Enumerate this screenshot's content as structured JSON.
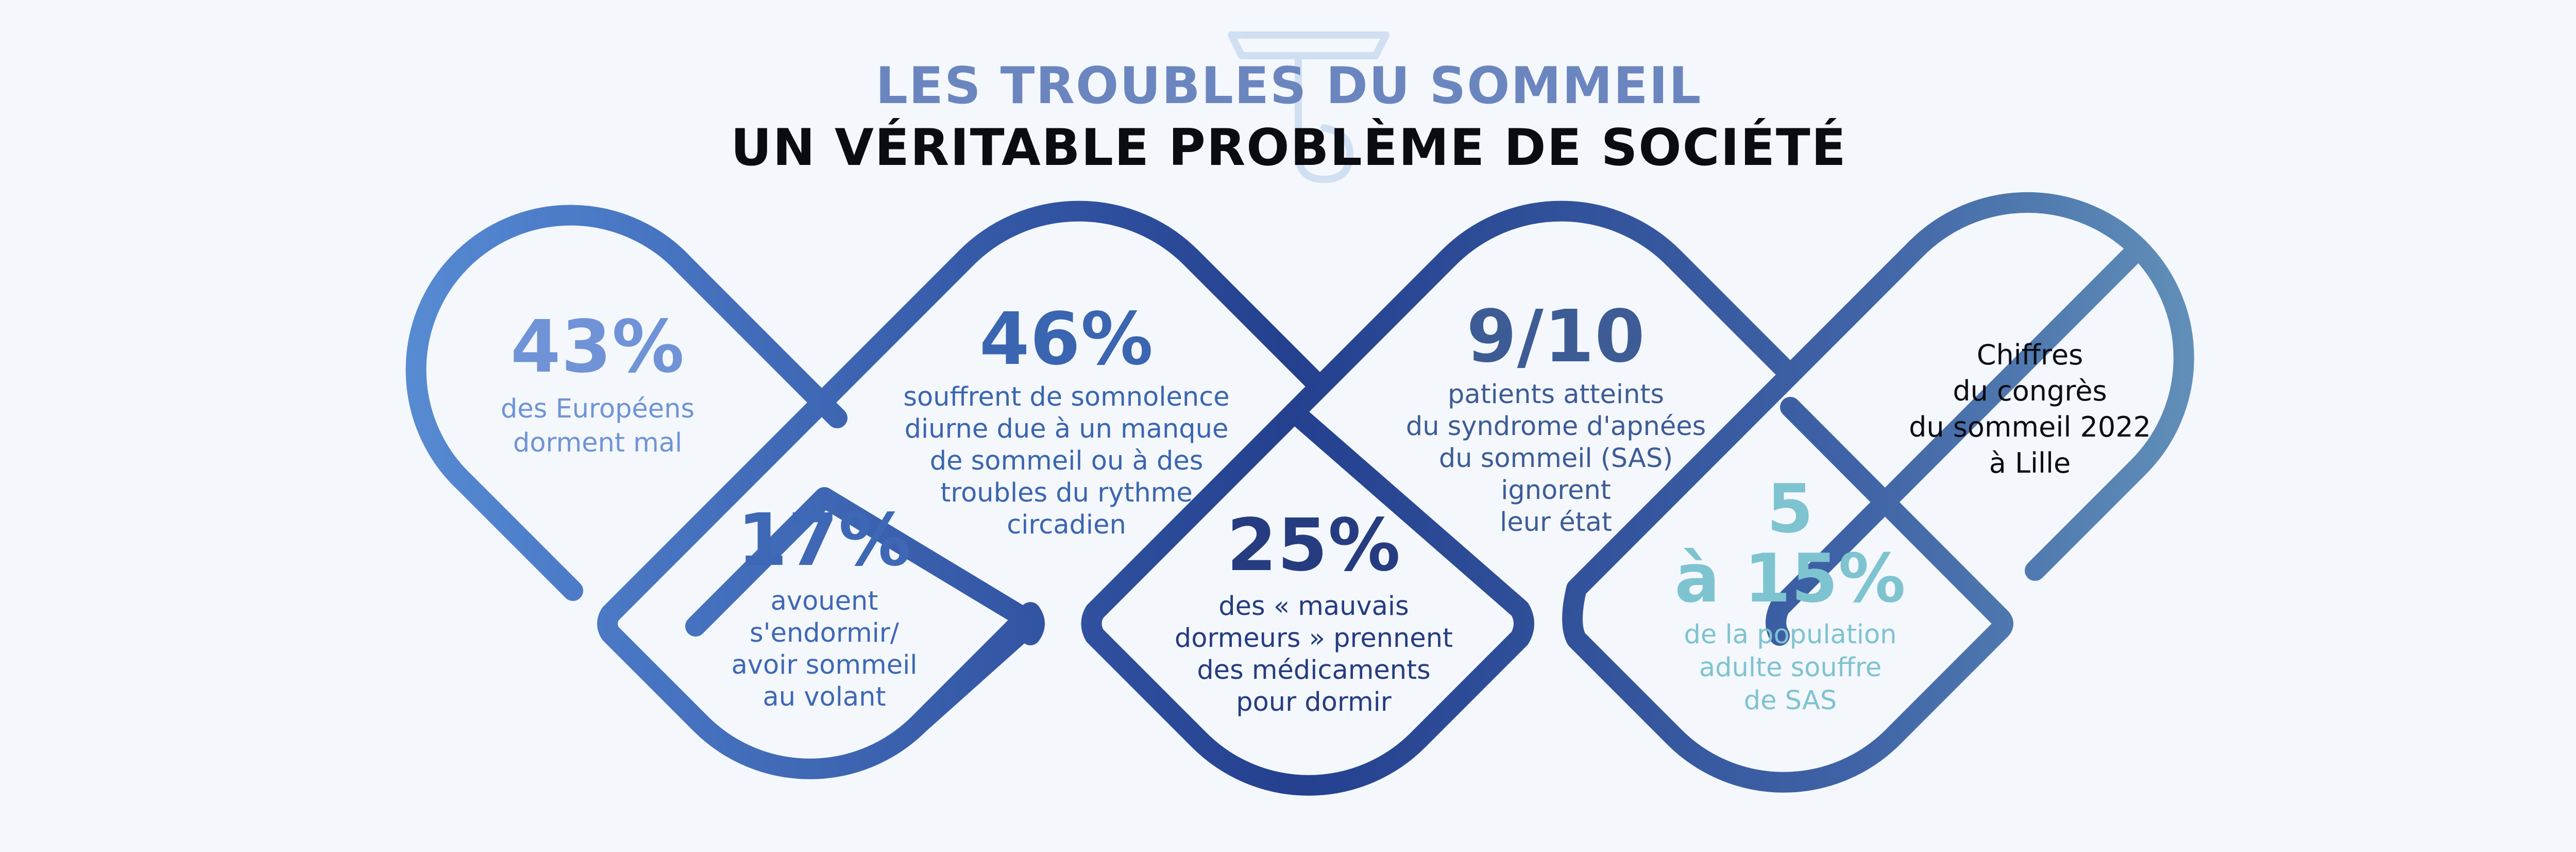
{
  "colors": {
    "background": "#f4f7fc",
    "title_accent": "#6b86bf",
    "title_main": "#0b0b12",
    "light_blue": "#6f93d6",
    "mid_blue": "#3e68b5",
    "deep_blue": "#2e4f98",
    "navy": "#253c80",
    "slate_blue": "#3d5c96",
    "teal": "#7ec3d0"
  },
  "header": {
    "line1": "LES TROUBLES DU SOMMEIL",
    "line2": "UN VÉRITABLE PROBLÈME DE SOCIÉTÉ"
  },
  "logo": {
    "icon": "letter-t-logo-icon"
  },
  "stats": [
    {
      "value": "43%",
      "text": [
        "des Européens",
        "dorment mal"
      ]
    },
    {
      "value": "17%",
      "text": [
        "avouent",
        "s'endormir/",
        "avoir sommeil",
        "au volant"
      ]
    },
    {
      "value": "46%",
      "text": [
        "souffrent de somnolence",
        "diurne due à un manque",
        "de sommeil ou à des",
        "troubles du rythme",
        "circadien"
      ]
    },
    {
      "value": "25%",
      "text": [
        "des « mauvais",
        "dormeurs » prennent",
        "des médicaments",
        "pour dormir"
      ]
    },
    {
      "value": "9/10",
      "text": [
        "patients atteints",
        "du syndrome d'apnées",
        "du sommeil (SAS)",
        "ignorent",
        "leur état"
      ]
    },
    {
      "value_line1": "5",
      "value_line2": "à 15%",
      "text": [
        "de la population",
        "adulte souffre",
        "de SAS"
      ]
    }
  ],
  "source": {
    "text": [
      "Chiffres",
      "du congrès",
      "du sommeil 2022",
      "à Lille"
    ]
  }
}
